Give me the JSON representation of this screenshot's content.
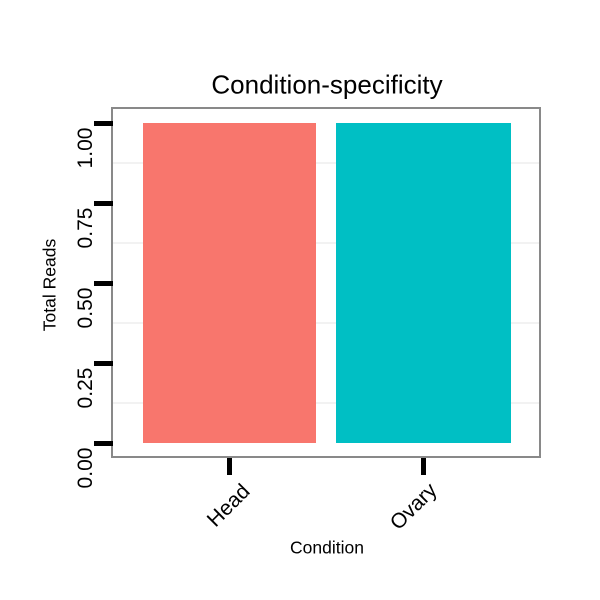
{
  "chart_data": {
    "type": "bar",
    "title": "Condition-specificity",
    "xlabel": "Condition",
    "ylabel": "Total Reads",
    "categories": [
      "Head",
      "Ovary"
    ],
    "values": [
      1.0,
      1.0
    ],
    "bar_colors": [
      "#F8766D",
      "#00BFC4"
    ],
    "ylim": [
      0,
      1
    ],
    "ytick_labels": [
      "0.00",
      "0.25",
      "0.50",
      "0.75",
      "1.00"
    ],
    "xtick_label_rotation_deg": 45,
    "ytick_label_rotation_deg": 90,
    "legend": "none",
    "grid": "minor horizontal gridlines only",
    "minor_grid_color": "#f2f2f2",
    "panel_border_color": "#898989",
    "tick_color": "#000000",
    "text_color": "#000000",
    "background_color": "#ffffff"
  }
}
